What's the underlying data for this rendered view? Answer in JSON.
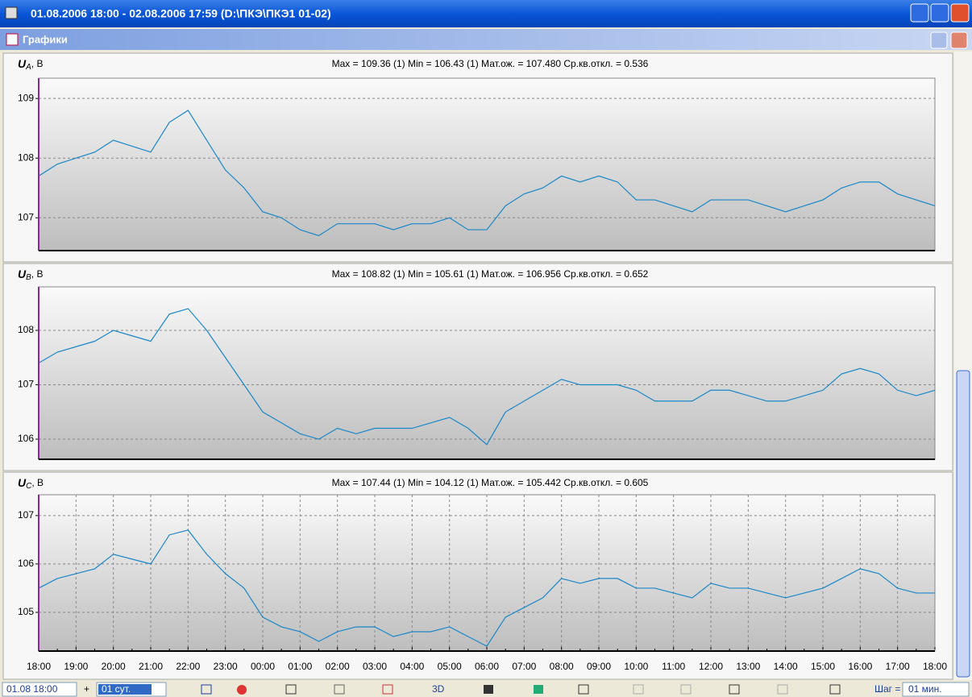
{
  "window": {
    "title": "01.08.2006 18:00  -  02.08.2006 17:59   (D:\\ПКЭ\\ПКЭ1 01-02)",
    "child_title": "Графики"
  },
  "chart_data": [
    {
      "type": "line",
      "y_label": {
        "symbol": "U",
        "subscript": "A",
        "unit": ", В"
      },
      "stats": "Max = 109.36 (1)   Min = 106.43 (1)   Мат.ож. = 107.480   Ср.кв.откл. = 0.536",
      "color": "#1a87c8",
      "grid": "y",
      "ylim": [
        106.45,
        109.34
      ],
      "yticks": [
        107,
        108,
        109
      ],
      "values": [
        107.7,
        107.9,
        108.0,
        108.1,
        108.3,
        108.2,
        108.1,
        108.6,
        108.8,
        108.3,
        107.8,
        107.5,
        107.1,
        107.0,
        106.8,
        106.7,
        106.9,
        106.9,
        106.9,
        106.8,
        106.9,
        106.9,
        107.0,
        106.8,
        106.8,
        107.2,
        107.4,
        107.5,
        107.7,
        107.6,
        107.7,
        107.6,
        107.3,
        107.3,
        107.2,
        107.1,
        107.3,
        107.3,
        107.3,
        107.2,
        107.1,
        107.2,
        107.3,
        107.5,
        107.6,
        107.6,
        107.4,
        107.3,
        107.2
      ]
    },
    {
      "type": "line",
      "y_label": {
        "symbol": "U",
        "subscript": "B",
        "unit": ", В"
      },
      "stats": "Max = 108.82 (1)   Min = 105.61 (1)   Мат.ож. = 106.956   Ср.кв.откл. = 0.652",
      "color": "#1a87c8",
      "grid": "y",
      "ylim": [
        105.63,
        108.8
      ],
      "yticks": [
        106,
        107,
        108
      ],
      "values": [
        107.4,
        107.6,
        107.7,
        107.8,
        108.0,
        107.9,
        107.8,
        108.3,
        108.4,
        108.0,
        107.5,
        107.0,
        106.5,
        106.3,
        106.1,
        106.0,
        106.2,
        106.1,
        106.2,
        106.2,
        106.2,
        106.3,
        106.4,
        106.2,
        105.9,
        106.5,
        106.7,
        106.9,
        107.1,
        107.0,
        107.0,
        107.0,
        106.9,
        106.7,
        106.7,
        106.7,
        106.9,
        106.9,
        106.8,
        106.7,
        106.7,
        106.8,
        106.9,
        107.2,
        107.3,
        107.2,
        106.9,
        106.8,
        106.9
      ]
    },
    {
      "type": "line",
      "y_label": {
        "symbol": "U",
        "subscript": "C",
        "unit": ", В"
      },
      "stats": "Max = 107.44 (1)   Min = 104.12 (1)   Мат.ож. = 105.442   Ср.кв.откл. = 0.605",
      "color": "#1a87c8",
      "grid": "both",
      "ylim": [
        104.2,
        107.43
      ],
      "yticks": [
        105,
        106,
        107
      ],
      "categories": [
        "18:00",
        null,
        "19:00",
        null,
        "20:00",
        null,
        "21:00",
        null,
        "22:00",
        null,
        "23:00",
        null,
        "00:00",
        null,
        "01:00",
        null,
        "02:00",
        null,
        "03:00",
        null,
        "04:00",
        null,
        "05:00",
        null,
        "06:00",
        null,
        "07:00",
        null,
        "08:00",
        null,
        "09:00",
        null,
        "10:00",
        null,
        "11:00",
        null,
        "12:00",
        null,
        "13:00",
        null,
        "14:00",
        null,
        "15:00",
        null,
        "16:00",
        null,
        "17:00",
        null,
        "18:00"
      ],
      "values": [
        105.5,
        105.7,
        105.8,
        105.9,
        106.2,
        106.1,
        106.0,
        106.6,
        106.7,
        106.2,
        105.8,
        105.5,
        104.9,
        104.7,
        104.6,
        104.4,
        104.6,
        104.7,
        104.7,
        104.5,
        104.6,
        104.6,
        104.7,
        104.5,
        104.3,
        104.9,
        105.1,
        105.3,
        105.7,
        105.6,
        105.7,
        105.7,
        105.5,
        105.5,
        105.4,
        105.3,
        105.6,
        105.5,
        105.5,
        105.4,
        105.3,
        105.4,
        105.5,
        105.7,
        105.9,
        105.8,
        105.5,
        105.4,
        105.4
      ]
    }
  ],
  "toolbar": {
    "start": "01.08 18:00",
    "plus": "+",
    "period": "01 сут.",
    "three_d": "3D",
    "step_label": "Шаг =",
    "step": "01 мин."
  }
}
